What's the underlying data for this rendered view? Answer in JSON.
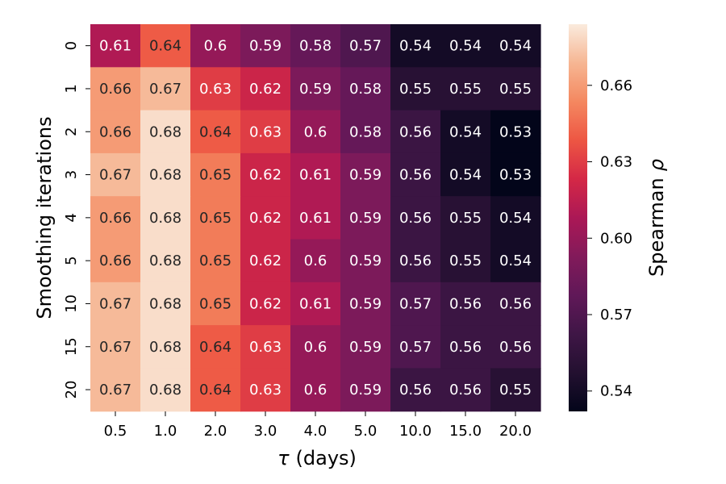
{
  "chart_data": {
    "type": "heatmap",
    "xlabel_symbol": "τ",
    "xlabel_unit": "(days)",
    "ylabel": "Smoothing iterations",
    "x_categories": [
      "0.5",
      "1.0",
      "2.0",
      "3.0",
      "4.0",
      "5.0",
      "10.0",
      "15.0",
      "20.0"
    ],
    "y_categories": [
      "0",
      "1",
      "2",
      "3",
      "4",
      "5",
      "10",
      "15",
      "20"
    ],
    "values": [
      [
        0.61,
        0.64,
        0.6,
        0.59,
        0.58,
        0.57,
        0.54,
        0.54,
        0.54
      ],
      [
        0.66,
        0.67,
        0.63,
        0.62,
        0.59,
        0.58,
        0.55,
        0.55,
        0.55
      ],
      [
        0.66,
        0.68,
        0.64,
        0.63,
        0.6,
        0.58,
        0.56,
        0.54,
        0.53
      ],
      [
        0.67,
        0.68,
        0.65,
        0.62,
        0.61,
        0.59,
        0.56,
        0.54,
        0.53
      ],
      [
        0.66,
        0.68,
        0.65,
        0.62,
        0.61,
        0.59,
        0.56,
        0.55,
        0.54
      ],
      [
        0.66,
        0.68,
        0.65,
        0.62,
        0.6,
        0.59,
        0.56,
        0.55,
        0.54
      ],
      [
        0.67,
        0.68,
        0.65,
        0.62,
        0.61,
        0.59,
        0.57,
        0.56,
        0.56
      ],
      [
        0.67,
        0.68,
        0.64,
        0.63,
        0.6,
        0.59,
        0.57,
        0.56,
        0.56
      ],
      [
        0.67,
        0.68,
        0.64,
        0.63,
        0.6,
        0.59,
        0.56,
        0.56,
        0.55
      ]
    ],
    "colorbar": {
      "label_prefix": "Spearman",
      "label_symbol": "ρ",
      "range": [
        0.532,
        0.684
      ],
      "ticks": [
        "0.54",
        "0.57",
        "0.60",
        "0.63",
        "0.66"
      ],
      "colormap": "rocket"
    }
  }
}
